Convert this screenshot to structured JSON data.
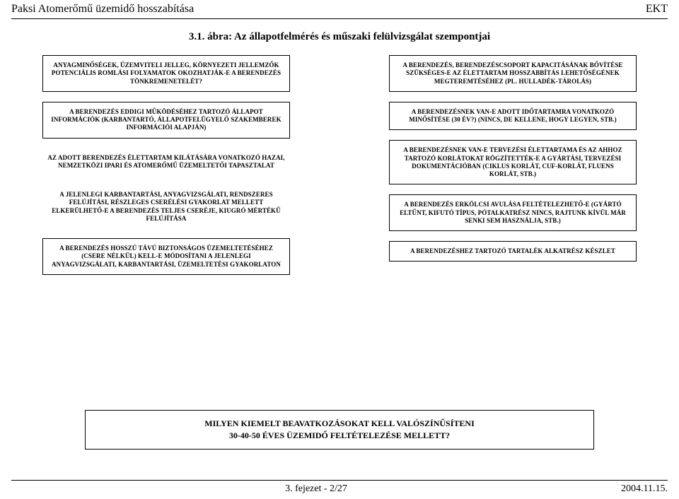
{
  "header": {
    "left": "Paksi Atomerőmű üzemidő hosszabítása",
    "right": "EKT"
  },
  "title": "3.1. ábra: Az állapotfelmérés és műszaki felülvizsgálat szempontjai",
  "left_col": [
    "ANYAGMINŐSÉGEK, ÜZEMVITELI JELLEG, KÖRNYEZETI JELLEMZŐK        POTENCIÁLIS ROMLÁSI FOLYAMATOK OKOZHATJÁK-E  A BERENDEZÉS TÖNKREMENETELÉT?",
    "A BERENDEZÉS EDDIGI MŰKÖDÉSÉHEZ TARTOZÓ ÁLLAPOT INFORMÁCIÓK (KARBANTARTÓ, ÁLLAPOTFELÜGYELŐ SZAKEMBEREK INFORMÁCIÓI ALAPJÁN)",
    "AZ ADOTT BERENDEZÉS ÉLETTARTAM KILÁTÁSÁRA VONATKOZÓ HAZAI, NEMZETKÖZI IPARI ÉS ATOMERŐMŰ ÜZEMELTETŐI TAPASZTALAT",
    "A JELENLEGI KARBANTARTÁSI, ANYAGVIZSGÁLATI, RENDSZERES FELÚJÍTÁSI, RÉSZLEGES CSERÉLÉSI GYAKORLAT MELLETT ELKERÜLHETŐ-E A BERENDEZÉS TELJES CSERÉJE, KIUGRÓ MÉRTÉKŰ FELÚJÍTÁSA",
    "A BERENDEZÉS HOSSZÚ TÁVÚ BIZTONSÁGOS ÜZEMELTETÉSÉHEZ (CSERE NÉLKÜL) KELL-E MÓDOSÍTANI A JELENLEGI ANYAGVIZSGÁLATI, KARBANTARTÁSI, ÜZEMELTETÉSI GYAKORLATON"
  ],
  "right_col": [
    "A BERENDEZÉS, BERENDEZÉSCSOPORT KAPACITÁSÁNAK BŐVÍTÉSE SZÜKSÉGES-E AZ ÉLETTARTAM HOSSZABBÍTÁS LEHETŐSÉGÉNEK MEGTEREMTÉSÉHEZ (PL. HULLADÉK-TÁROLÁS)",
    "A BERENDEZÉSNEK VAN-E ADOTT IDŐTARTAMRA VONATKOZÓ MINŐSÍTÉSE (30 ÉV?) (NINCS, DE KELLENE, HOGY LEGYEN, STB.)",
    "A BERENDEZÉSNEK VAN-E TERVEZÉSI ÉLETTARTAMA ÉS AZ AHHOZ TARTOZÓ KORLÁTOKAT RÖGZÍTETTÉK-E A GYÁRTÁSI, TERVEZÉSI DOKUMENTÁCIÓBAN (CIKLUS KORLÁT, CUF-KORLÁT, FLUENS KORLÁT, STB.)",
    "A BERENDEZÉS ERKÖLCSI AVULÁSA FELTÉTELEZHETŐ-E (GYÁRTÓ ELTŰNT, KIFUTÓ TÍPUS, PÓTALKATRÉSZ NINCS, RAJTUNK KÍVÜL MÁR SENKI SEM HASZNÁLJA, STB.)",
    "A BERENDEZÉSHEZ TARTOZÓ TARTALÉK ALKATRÉSZ KÉSZLET"
  ],
  "result": {
    "l1": "MILYEN  KIEMELT  BEAVATKOZÁSOKAT  KELL  VALÓSZÍNŰSÍTENI",
    "l2": "30-40-50 ÉVES ÜZEMIDŐ FELTÉTELEZÉSE MELLETT?"
  },
  "footer": {
    "center": "3. fejezet - 2/27",
    "right": "2004.11.15."
  },
  "left_noborder_idx": [
    2,
    3
  ],
  "right_noborder_idx": []
}
